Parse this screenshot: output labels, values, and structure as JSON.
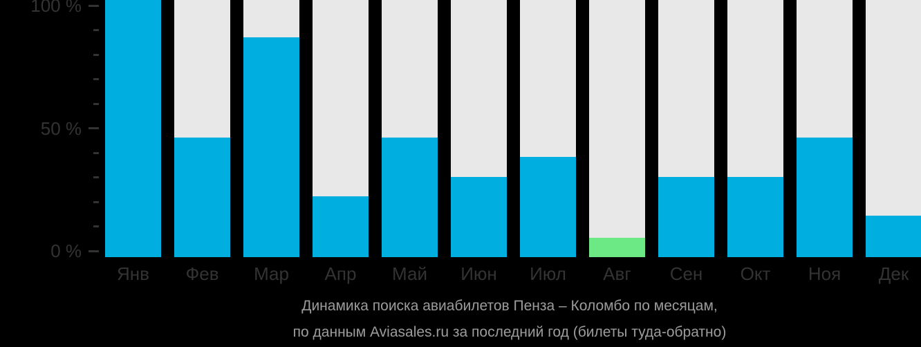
{
  "chart_data": {
    "type": "bar",
    "title": "Динамика поиска авиабилетов Пенза – Коломбо по месяцам, по данным Aviasales.ru за последний год (билеты туда-обратно)",
    "categories": [
      "Янв",
      "Фев",
      "Мар",
      "Апр",
      "Май",
      "Июн",
      "Июл",
      "Авг",
      "Сен",
      "Окт",
      "Ноя",
      "Дек"
    ],
    "values": [
      100,
      46,
      87,
      22,
      46,
      30,
      38,
      5,
      30,
      30,
      46,
      14
    ],
    "unit": "%",
    "highlight_index": 7,
    "highlight_month": "Авг",
    "ylim": [
      0,
      100
    ],
    "y_ticks": [
      {
        "label": "100 %",
        "value": 100
      },
      {
        "label": "50 %",
        "value": 50
      },
      {
        "label": "0 %",
        "value": 0
      }
    ],
    "minor_ticks_between_majors": 4,
    "grid": false,
    "legend": "none",
    "xlabel": "",
    "ylabel": ""
  },
  "caption": {
    "line1": "Динамика поиска авиабилетов Пенза – Коломбо по месяцам,",
    "line2": "по данным Aviasales.ru за последний год (билеты туда-обратно)"
  },
  "colors": {
    "background": "#000000",
    "bar_fill": "#00AFDF",
    "bar_track": "#E8E8E8",
    "bar_highlight": "#6CE984",
    "axis_text": "#333333",
    "caption_text": "#9C9C9C"
  }
}
